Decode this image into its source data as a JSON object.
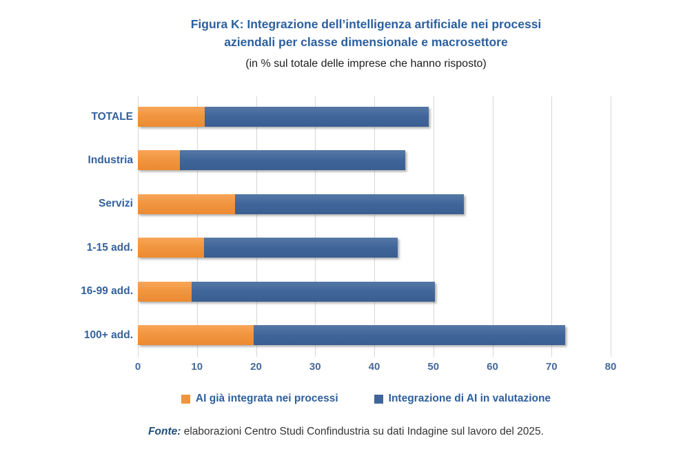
{
  "header": {
    "title_line1": "Figura K: Integrazione dell’intelligenza artificiale nei processi",
    "title_line2": "aziendali per classe dimensionale e macrosettore",
    "subtitle": "(in % sul totale delle imprese che hanno risposto)"
  },
  "chart_data": {
    "type": "bar",
    "orientation": "horizontal",
    "stacked": true,
    "title": "Figura K: Integrazione dell’intelligenza artificiale nei processi aziendali per classe dimensionale e macrosettore",
    "subtitle": "(in % sul totale delle imprese che hanno risposto)",
    "categories": [
      "TOTALE",
      "Industria",
      "Servizi",
      "1-15 add.",
      "16-99 add.",
      "100+ add."
    ],
    "series": [
      {
        "id": "ai-integrata",
        "name": "AI già integrata nei processi",
        "color": "#F0953F",
        "color_light": "#F9A557",
        "color_dark": "#EC8A31",
        "values": [
          11.3,
          7.1,
          16.5,
          11.2,
          9.1,
          19.6
        ]
      },
      {
        "id": "ai-valutazione",
        "name": "Integrazione di AI in valutazione",
        "color": "#40659A",
        "color_light": "#5578A5",
        "color_dark": "#3A5E91",
        "values": [
          37.9,
          38.1,
          38.7,
          32.8,
          41.2,
          52.7
        ]
      }
    ],
    "stacked_totals": [
      49.2,
      45.2,
      55.2,
      44.0,
      50.3,
      72.3
    ],
    "xlim": [
      0,
      80
    ],
    "xticks": [
      0,
      10,
      20,
      30,
      40,
      50,
      60,
      70,
      80
    ],
    "grid": "vertical",
    "legend_position": "bottom"
  },
  "footer": {
    "source_label": "Fonte:",
    "source_text": " elaborazioni Centro Studi Confindustria su dati Indagine sul lavoro del 2025."
  },
  "colors": {
    "title_text": "#2B5F9E",
    "category_label_text": "#35619B",
    "axis_tick_text": "#45689A",
    "legend_text": "#2E5F9E",
    "gridline": "#D6D6D6",
    "source_label_text": "#1F4E79"
  }
}
